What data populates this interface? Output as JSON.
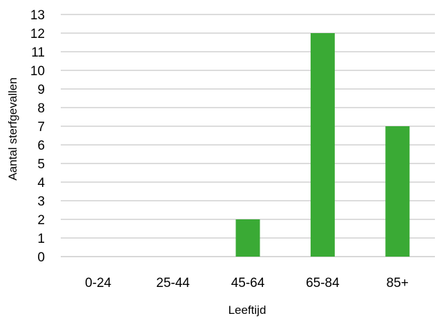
{
  "chart_data": {
    "type": "bar",
    "categories": [
      "0-24",
      "25-44",
      "45-64",
      "65-84",
      "85+"
    ],
    "values": [
      0,
      0,
      2,
      12,
      7
    ],
    "xlabel": "Leeftijd",
    "ylabel": "Aantal sterfgevallen",
    "ylim": [
      0,
      13
    ],
    "yticks": [
      0,
      1,
      2,
      3,
      4,
      5,
      6,
      7,
      8,
      9,
      10,
      11,
      12,
      13
    ],
    "grid": true,
    "legend": "none",
    "bar_color": "#3aaa35"
  }
}
